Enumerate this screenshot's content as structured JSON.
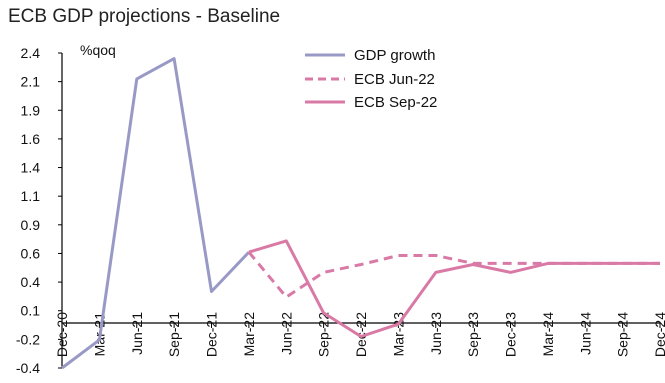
{
  "chart_data": {
    "type": "line",
    "title": "ECB GDP projections - Baseline",
    "ylabel": "%qoq",
    "ylim": [
      -0.4,
      2.4
    ],
    "yticks": [
      "2.4",
      "2.1",
      "1.9",
      "1.6",
      "1.4",
      "1.1",
      "0.9",
      "0.6",
      "0.4",
      "0.1",
      "-0.2",
      "-0.4"
    ],
    "x": [
      "Dec-20",
      "Mar-21",
      "Jun-21",
      "Sep-21",
      "Dec-21",
      "Mar-22",
      "Jun-22",
      "Sep-22",
      "Dec-22",
      "Mar-23",
      "Jun-23",
      "Sep-23",
      "Dec-23",
      "Mar-24",
      "Jun-24",
      "Sep-24",
      "Dec-24"
    ],
    "legend_position": "top-right",
    "series": [
      {
        "name": "GDP growth",
        "color": "#9999c6",
        "style": "solid",
        "values": [
          -0.4,
          -0.15,
          2.17,
          2.35,
          0.28,
          0.63,
          null,
          null,
          null,
          null,
          null,
          null,
          null,
          null,
          null,
          null,
          null
        ]
      },
      {
        "name": "ECB Jun-22",
        "color": "#d97aa6",
        "style": "dashed",
        "values": [
          null,
          null,
          null,
          null,
          null,
          0.63,
          0.23,
          0.45,
          0.52,
          0.6,
          0.6,
          0.53,
          0.53,
          0.53,
          0.53,
          0.53,
          0.53
        ]
      },
      {
        "name": "ECB Sep-22",
        "color": "#d97aa6",
        "style": "solid",
        "values": [
          null,
          null,
          null,
          null,
          null,
          0.63,
          0.73,
          0.09,
          -0.12,
          -0.01,
          0.45,
          0.52,
          0.45,
          0.53,
          0.53,
          0.53,
          0.53
        ]
      }
    ]
  }
}
